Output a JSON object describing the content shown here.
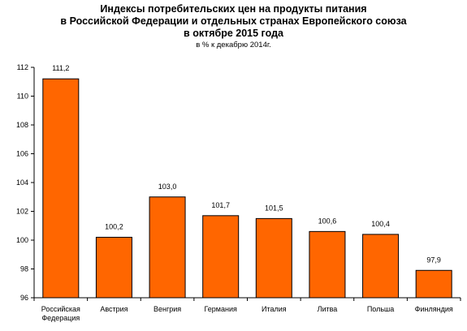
{
  "chart_data": {
    "type": "bar",
    "title_lines": [
      "Индексы потребительских цен на продукты питания",
      "в Российской Федерации и отдельных странах Европейского союза",
      "в октябре 2015 года"
    ],
    "subtitle": "в % к декабрю 2014г.",
    "categories": [
      [
        "Российская",
        "Федерация"
      ],
      [
        "Австрия"
      ],
      [
        "Венгрия"
      ],
      [
        "Германия"
      ],
      [
        "Италия"
      ],
      [
        "Литва"
      ],
      [
        "Польша"
      ],
      [
        "Финляндия"
      ]
    ],
    "values": [
      111.2,
      100.2,
      103.0,
      101.7,
      101.5,
      100.6,
      100.4,
      97.9
    ],
    "value_labels": [
      "111,2",
      "100,2",
      "103,0",
      "101,7",
      "101,5",
      "100,6",
      "100,4",
      "97,9"
    ],
    "ylim": [
      96,
      112
    ],
    "yticks": [
      96,
      98,
      100,
      102,
      104,
      106,
      108,
      110,
      112
    ],
    "grid": false,
    "legend": "none",
    "bar_color": "#ff6600",
    "bar_edge_color": "#000000"
  }
}
